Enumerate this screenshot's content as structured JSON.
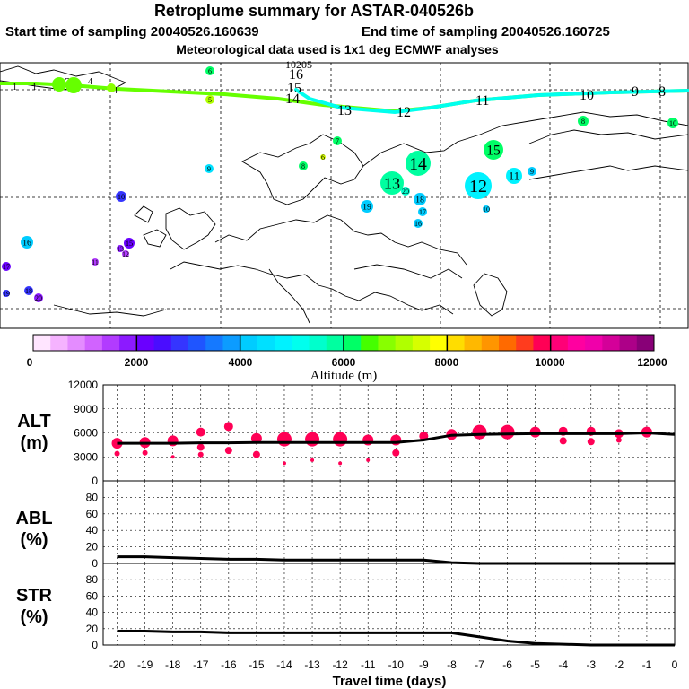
{
  "header": {
    "title": "Retroplume summary for ASTAR-040526b",
    "start_label": "Start time of sampling 20040526.160639",
    "end_label": "End time of sampling 20040526.160725",
    "met_label": "Meteorological data used is 1x1 deg ECMWF analyses"
  },
  "colors": {
    "trajectory_lowlevel": "#66ff00",
    "trajectory_main": "#00ffee",
    "point_fill": "#ff0055",
    "line": "#000000"
  },
  "colorbar": {
    "label": "Altitude (m)",
    "tick_labels": [
      "0",
      "2000",
      "4000",
      "6000",
      "8000",
      "10000",
      "12000"
    ],
    "colors": [
      "#ffe5ff",
      "#f5b3ff",
      "#e48cff",
      "#d163ff",
      "#b23bff",
      "#8c1aff",
      "#6a00ff",
      "#4a0dff",
      "#3535ff",
      "#1f55ff",
      "#1579ff",
      "#0c9cff",
      "#00ccff",
      "#00e0ff",
      "#00f2ff",
      "#00ffee",
      "#00ffcc",
      "#00ffa0",
      "#00ff66",
      "#45ff00",
      "#88ff00",
      "#b0ff00",
      "#d6ff00",
      "#ffff00",
      "#ffdd00",
      "#ffb800",
      "#ff9500",
      "#ff6a00",
      "#ff3c1e",
      "#ff0055",
      "#ff0077",
      "#ff00a0",
      "#f000aa",
      "#d40099",
      "#ad0088",
      "#880077"
    ]
  },
  "map": {
    "trajectory_upper_labels": [
      "10205",
      "16",
      "15",
      "14",
      "13",
      "12",
      "11",
      "10",
      "9",
      "8"
    ],
    "trajectory_lower_labels": [
      "1",
      "1",
      "2",
      "4",
      "4"
    ],
    "cluster_points": [
      {
        "label": "6",
        "color": "#00ff66"
      },
      {
        "label": "5",
        "color": "#b0ff00"
      },
      {
        "label": "7",
        "color": "#00ff66"
      },
      {
        "label": "8",
        "color": "#00ff66"
      },
      {
        "label": "6",
        "color": "#d6ff00"
      },
      {
        "label": "9",
        "color": "#00e0ff"
      },
      {
        "label": "10",
        "color": "#3535ff"
      },
      {
        "label": "14",
        "color": "#00ffa0"
      },
      {
        "label": "15",
        "color": "#00ff66"
      },
      {
        "label": "13",
        "color": "#00ffa0"
      },
      {
        "label": "20",
        "color": "#00ffcc"
      },
      {
        "label": "12",
        "color": "#00f2ff"
      },
      {
        "label": "11",
        "color": "#00f2ff"
      },
      {
        "label": "9",
        "color": "#00ccff"
      },
      {
        "label": "8",
        "color": "#00ff66"
      },
      {
        "label": "10",
        "color": "#00ff66"
      },
      {
        "label": "18",
        "color": "#00ccff"
      },
      {
        "label": "19",
        "color": "#00ccff"
      },
      {
        "label": "17",
        "color": "#00ccff"
      },
      {
        "label": "16",
        "color": "#00ccff"
      },
      {
        "label": "10",
        "color": "#00ccff"
      },
      {
        "label": "16",
        "color": "#00ccff"
      },
      {
        "label": "15",
        "color": "#6a00ff"
      },
      {
        "label": "13",
        "color": "#8c1aff"
      },
      {
        "label": "12",
        "color": "#b23bff"
      },
      {
        "label": "11",
        "color": "#b23bff"
      },
      {
        "label": "17",
        "color": "#6a00ff"
      },
      {
        "label": "18",
        "color": "#3535ff"
      },
      {
        "label": "19",
        "color": "#3535ff"
      },
      {
        "label": "20",
        "color": "#8c1aff"
      }
    ]
  },
  "chart_data": [
    {
      "type": "line",
      "panel": "ALT",
      "ylabel_line1": "ALT",
      "ylabel_line2": "(m)",
      "ylim": [
        0,
        12000
      ],
      "yticks": [
        0,
        3000,
        6000,
        9000,
        12000
      ],
      "x": [
        -20,
        -19,
        -18,
        -17,
        -16,
        -15,
        -14,
        -13,
        -12,
        -11,
        -10,
        -9,
        -8,
        -7,
        -6,
        -5,
        -4,
        -3,
        -2,
        -1,
        0
      ],
      "series": [
        {
          "name": "mean altitude",
          "values": [
            4700,
            4700,
            4700,
            4750,
            4750,
            4800,
            4800,
            4800,
            4800,
            4800,
            4800,
            5100,
            5700,
            5800,
            5850,
            5900,
            5900,
            5900,
            5900,
            6000,
            5800
          ]
        }
      ],
      "scatter": [
        {
          "x": -20,
          "y": 4700,
          "size": 6
        },
        {
          "x": -20,
          "y": 3400,
          "size": 3
        },
        {
          "x": -19,
          "y": 4800,
          "size": 6
        },
        {
          "x": -19,
          "y": 3500,
          "size": 3
        },
        {
          "x": -18,
          "y": 5000,
          "size": 6
        },
        {
          "x": -18,
          "y": 3000,
          "size": 2
        },
        {
          "x": -17,
          "y": 6100,
          "size": 5
        },
        {
          "x": -17,
          "y": 4200,
          "size": 4
        },
        {
          "x": -17,
          "y": 3300,
          "size": 3
        },
        {
          "x": -16,
          "y": 6800,
          "size": 5
        },
        {
          "x": -16,
          "y": 3800,
          "size": 4
        },
        {
          "x": -15,
          "y": 5300,
          "size": 6
        },
        {
          "x": -15,
          "y": 3300,
          "size": 4
        },
        {
          "x": -14,
          "y": 5200,
          "size": 8
        },
        {
          "x": -14,
          "y": 2200,
          "size": 2
        },
        {
          "x": -13,
          "y": 5200,
          "size": 8
        },
        {
          "x": -13,
          "y": 2600,
          "size": 2
        },
        {
          "x": -12,
          "y": 5200,
          "size": 8
        },
        {
          "x": -12,
          "y": 2200,
          "size": 2
        },
        {
          "x": -11,
          "y": 5100,
          "size": 6
        },
        {
          "x": -11,
          "y": 2600,
          "size": 2
        },
        {
          "x": -10,
          "y": 5100,
          "size": 6
        },
        {
          "x": -10,
          "y": 3500,
          "size": 4
        },
        {
          "x": -9,
          "y": 5600,
          "size": 5
        },
        {
          "x": -8,
          "y": 5800,
          "size": 6
        },
        {
          "x": -7,
          "y": 6100,
          "size": 8
        },
        {
          "x": -6,
          "y": 6100,
          "size": 8
        },
        {
          "x": -5,
          "y": 6100,
          "size": 6
        },
        {
          "x": -4,
          "y": 6200,
          "size": 5
        },
        {
          "x": -4,
          "y": 5000,
          "size": 4
        },
        {
          "x": -3,
          "y": 6200,
          "size": 5
        },
        {
          "x": -3,
          "y": 4900,
          "size": 4
        },
        {
          "x": -2,
          "y": 5900,
          "size": 5
        },
        {
          "x": -2,
          "y": 5100,
          "size": 3
        },
        {
          "x": -1,
          "y": 6100,
          "size": 6
        }
      ]
    },
    {
      "type": "line",
      "panel": "ABL",
      "ylabel_line1": "ABL",
      "ylabel_line2": "(%)",
      "ylim": [
        0,
        100
      ],
      "yticks": [
        0,
        20,
        40,
        60,
        80
      ],
      "x": [
        -20,
        -19,
        -18,
        -17,
        -16,
        -15,
        -14,
        -13,
        -12,
        -11,
        -10,
        -9,
        -8,
        -7,
        -6,
        -5,
        -4,
        -3,
        -2,
        -1,
        0
      ],
      "series": [
        {
          "name": "ABL fraction",
          "values": [
            8,
            8,
            7,
            6,
            5,
            5,
            4,
            4,
            4,
            4,
            4,
            4,
            1,
            0,
            0,
            0,
            0,
            0,
            0,
            0,
            0
          ]
        }
      ]
    },
    {
      "type": "line",
      "panel": "STR",
      "ylabel_line1": "STR",
      "ylabel_line2": "(%)",
      "ylim": [
        0,
        100
      ],
      "yticks": [
        0,
        20,
        40,
        60,
        80
      ],
      "xlabel": "Travel time (days)",
      "xtick_labels": [
        "-20",
        "-19",
        "-18",
        "-17",
        "-16",
        "-15",
        "-14",
        "-13",
        "-12",
        "-11",
        "-10",
        "-9",
        "-8",
        "-7",
        "-6",
        "-5",
        "-4",
        "-3",
        "-2",
        "-1",
        "0"
      ],
      "x": [
        -20,
        -19,
        -18,
        -17,
        -16,
        -15,
        -14,
        -13,
        -12,
        -11,
        -10,
        -9,
        -8,
        -7,
        -6,
        -5,
        -4,
        -3,
        -2,
        -1,
        0
      ],
      "series": [
        {
          "name": "stratospheric fraction",
          "values": [
            17,
            17,
            16,
            16,
            15,
            15,
            15,
            15,
            15,
            15,
            15,
            15,
            15,
            10,
            5,
            2,
            1,
            0,
            0,
            0,
            0
          ]
        }
      ]
    }
  ]
}
